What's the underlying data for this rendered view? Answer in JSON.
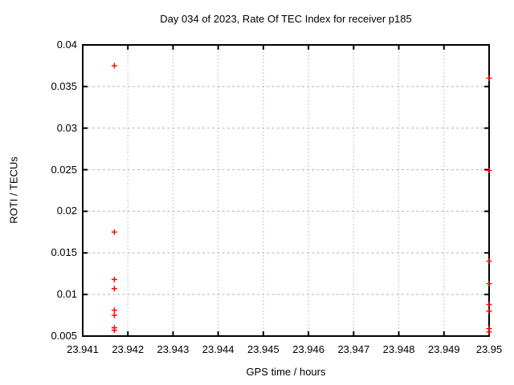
{
  "title": "Day 034 of 2023, Rate Of TEC Index for receiver p185",
  "chart_data": {
    "type": "scatter",
    "title": "Day 034 of 2023, Rate Of TEC Index for receiver p185",
    "xlabel": "GPS time / hours",
    "ylabel": "ROTI / TECUs",
    "xlim": [
      23.941,
      23.95
    ],
    "ylim": [
      0.005,
      0.04
    ],
    "grid": true,
    "legend": "none",
    "marker": "plus",
    "x_ticks": [
      23.941,
      23.942,
      23.943,
      23.944,
      23.945,
      23.946,
      23.947,
      23.948,
      23.949,
      23.95
    ],
    "x_tick_labels": [
      "23.941",
      "23.942",
      "23.943",
      "23.944",
      "23.945",
      "23.946",
      "23.947",
      "23.948",
      "23.949",
      "23.95"
    ],
    "y_ticks": [
      0.005,
      0.01,
      0.015,
      0.02,
      0.025,
      0.03,
      0.035,
      0.04
    ],
    "y_tick_labels": [
      "0.005",
      "0.01",
      "0.015",
      "0.02",
      "0.025",
      "0.03",
      "0.035",
      "0.04"
    ],
    "series": [
      {
        "name": "ROTI",
        "marker_color": "#ff0000",
        "points": [
          {
            "x": 23.9417,
            "y": 0.0375
          },
          {
            "x": 23.9417,
            "y": 0.0175
          },
          {
            "x": 23.9417,
            "y": 0.0118
          },
          {
            "x": 23.9417,
            "y": 0.0107
          },
          {
            "x": 23.9417,
            "y": 0.0081
          },
          {
            "x": 23.9417,
            "y": 0.0075
          },
          {
            "x": 23.9417,
            "y": 0.006
          },
          {
            "x": 23.9417,
            "y": 0.0057
          },
          {
            "x": 23.95,
            "y": 0.036
          },
          {
            "x": 23.95,
            "y": 0.0249
          },
          {
            "x": 23.95,
            "y": 0.014
          },
          {
            "x": 23.95,
            "y": 0.0113
          },
          {
            "x": 23.95,
            "y": 0.0088
          },
          {
            "x": 23.95,
            "y": 0.008
          },
          {
            "x": 23.95,
            "y": 0.0059
          },
          {
            "x": 23.95,
            "y": 0.0055
          }
        ]
      }
    ]
  },
  "colors": {
    "background": "#ffffff",
    "border": "#000000",
    "grid": "#b3b3b3",
    "marker": "#ff0000",
    "text": "#000000"
  }
}
